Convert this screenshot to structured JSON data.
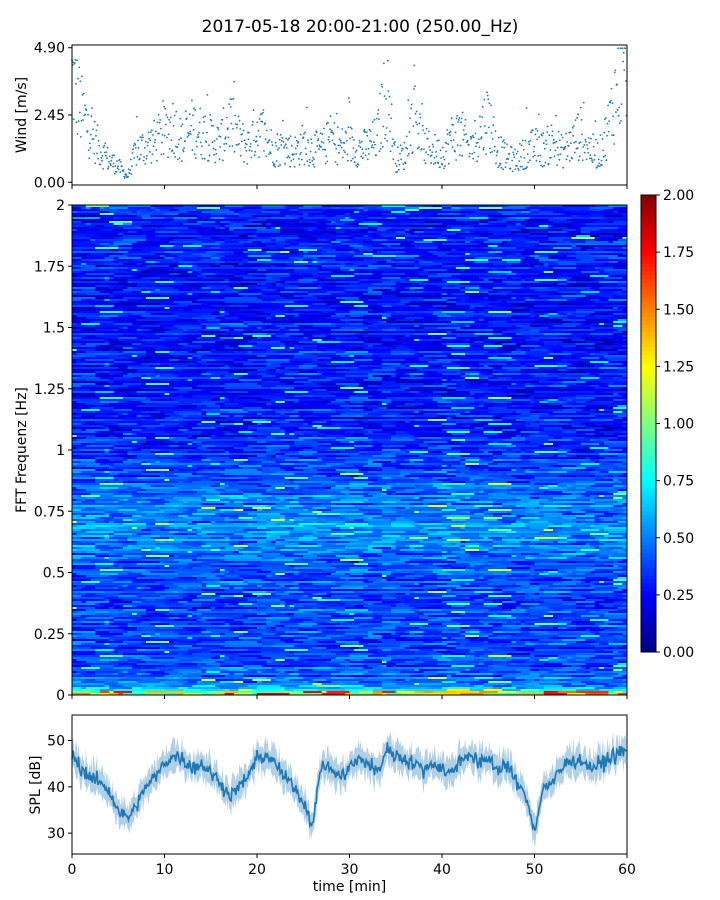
{
  "figure": {
    "title": "2017-05-18 20:00-21:00 (250.00_Hz)",
    "colors": {
      "series": "#1f77b4",
      "axis": "#000000",
      "background": "#ffffff"
    }
  },
  "chart_data": [
    {
      "id": "wind",
      "type": "scatter",
      "ylabel": "Wind [m/s]",
      "xlim": [
        0,
        60
      ],
      "ylim": [
        -0.1,
        5.0
      ],
      "yticks": [
        0.0,
        2.45,
        4.9
      ],
      "ytick_labels": [
        "0.00",
        "2.45",
        "4.90"
      ],
      "x_ticks_labeled": false,
      "series": [
        {
          "marker": "dot",
          "color": "#1f77b4",
          "x": [
            0,
            1,
            2,
            3,
            4,
            5,
            6,
            7,
            8,
            9,
            10,
            11,
            12,
            13,
            14,
            15,
            16,
            17,
            18,
            19,
            20,
            21,
            22,
            23,
            24,
            25,
            26,
            27,
            28,
            29,
            30,
            31,
            32,
            33,
            34,
            35,
            36,
            37,
            38,
            39,
            40,
            41,
            42,
            43,
            44,
            45,
            46,
            47,
            48,
            49,
            50,
            51,
            52,
            53,
            54,
            55,
            56,
            57,
            58,
            59,
            60
          ],
          "y": [
            3.8,
            2.6,
            1.8,
            1.2,
            0.8,
            0.6,
            0.2,
            1.2,
            1.3,
            1.5,
            1.8,
            2.1,
            1.4,
            2.0,
            1.8,
            1.6,
            1.4,
            2.3,
            1.6,
            1.3,
            2.0,
            1.5,
            1.2,
            1.3,
            1.1,
            1.4,
            1.2,
            1.2,
            1.6,
            1.3,
            1.4,
            1.2,
            1.3,
            1.6,
            3.4,
            0.8,
            1.0,
            2.6,
            1.3,
            1.2,
            1.0,
            1.6,
            1.8,
            1.2,
            1.8,
            2.4,
            1.2,
            0.9,
            0.8,
            1.1,
            1.3,
            1.2,
            1.5,
            1.1,
            1.4,
            1.8,
            1.2,
            1.0,
            2.0,
            3.6,
            4.5
          ]
        }
      ]
    },
    {
      "id": "spectrogram",
      "type": "heatmap",
      "ylabel": "FFT Frequenz [Hz]",
      "xlim": [
        0,
        60
      ],
      "ylim": [
        0,
        2
      ],
      "yticks": [
        0,
        0.25,
        0.5,
        0.75,
        1,
        1.25,
        1.5,
        1.75,
        2
      ],
      "ytick_labels": [
        "0",
        "0.25",
        "0.5",
        "0.75",
        "1",
        "1.25",
        "1.5",
        "1.75",
        "2"
      ],
      "x_ticks_labeled": false,
      "colormap": "jet",
      "value_range": [
        0.0,
        2.0
      ],
      "band_profile": {
        "freq": [
          0.0,
          0.02,
          0.05,
          0.1,
          0.25,
          0.5,
          0.6,
          0.7,
          0.8,
          1.0,
          1.25,
          1.5,
          1.75,
          2.0
        ],
        "mean_value": [
          1.3,
          0.75,
          0.5,
          0.42,
          0.38,
          0.42,
          0.5,
          0.55,
          0.5,
          0.34,
          0.3,
          0.3,
          0.28,
          0.28
        ]
      },
      "colorbar": {
        "ticks": [
          0.0,
          0.25,
          0.5,
          0.75,
          1.0,
          1.25,
          1.5,
          1.75,
          2.0
        ],
        "tick_labels": [
          "0.00",
          "0.25",
          "0.50",
          "0.75",
          "1.00",
          "1.25",
          "1.50",
          "1.75",
          "2.00"
        ]
      }
    },
    {
      "id": "spl",
      "type": "line",
      "ylabel": "SPL [dB]",
      "xlabel": "time [min]",
      "xlim": [
        0,
        60
      ],
      "ylim": [
        25.5,
        55.5
      ],
      "xticks": [
        0,
        10,
        20,
        30,
        40,
        50,
        60
      ],
      "xtick_labels": [
        "0",
        "10",
        "20",
        "30",
        "40",
        "50",
        "60"
      ],
      "yticks": [
        30,
        40,
        50
      ],
      "ytick_labels": [
        "30",
        "40",
        "50"
      ],
      "series": [
        {
          "color": "#1f77b4",
          "x": [
            0,
            1,
            2,
            3,
            4,
            5,
            6,
            7,
            8,
            9,
            10,
            11,
            12,
            13,
            14,
            15,
            16,
            17,
            18,
            19,
            20,
            21,
            22,
            23,
            24,
            25,
            26,
            27,
            28,
            29,
            30,
            31,
            32,
            33,
            34,
            35,
            36,
            37,
            38,
            39,
            40,
            41,
            42,
            43,
            44,
            45,
            46,
            47,
            48,
            49,
            50,
            51,
            52,
            53,
            54,
            55,
            56,
            57,
            58,
            59,
            60
          ],
          "y": [
            47,
            44,
            42,
            41,
            39,
            35,
            33,
            36,
            40,
            42,
            45,
            47,
            46,
            44,
            45,
            43,
            41,
            38,
            40,
            42,
            46,
            47,
            45,
            42,
            40,
            37,
            32,
            45,
            44,
            42,
            44,
            46,
            45,
            43,
            48,
            47,
            46,
            45,
            44,
            45,
            44,
            43,
            46,
            47,
            45,
            46,
            44,
            45,
            41,
            38,
            31,
            40,
            41,
            44,
            46,
            46,
            44,
            45,
            46,
            47,
            48
          ]
        }
      ]
    }
  ]
}
